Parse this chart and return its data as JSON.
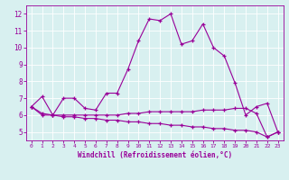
{
  "xlabel": "Windchill (Refroidissement éolien,°C)",
  "line1_x": [
    0,
    1,
    2,
    3,
    4,
    5,
    6,
    7,
    8,
    9,
    10,
    11,
    12,
    13,
    14,
    15,
    16,
    17,
    18,
    19,
    20,
    21,
    22,
    23
  ],
  "line1_y": [
    6.5,
    7.1,
    6.0,
    7.0,
    7.0,
    6.4,
    6.3,
    7.3,
    7.3,
    8.7,
    10.4,
    11.7,
    11.6,
    12.0,
    10.2,
    10.4,
    11.4,
    10.0,
    9.5,
    7.9,
    6.0,
    6.5,
    6.7,
    5.0
  ],
  "line2_x": [
    0,
    1,
    2,
    3,
    4,
    5,
    6,
    7,
    8,
    9,
    10,
    11,
    12,
    13,
    14,
    15,
    16,
    17,
    18,
    19,
    20,
    21,
    22,
    23
  ],
  "line2_y": [
    6.5,
    6.0,
    6.0,
    6.0,
    6.0,
    6.0,
    6.0,
    6.0,
    6.0,
    6.1,
    6.1,
    6.2,
    6.2,
    6.2,
    6.2,
    6.2,
    6.3,
    6.3,
    6.3,
    6.4,
    6.4,
    6.1,
    4.7,
    5.0
  ],
  "line3_x": [
    0,
    1,
    2,
    3,
    4,
    5,
    6,
    7,
    8,
    9,
    10,
    11,
    12,
    13,
    14,
    15,
    16,
    17,
    18,
    19,
    20,
    21,
    22,
    23
  ],
  "line3_y": [
    6.5,
    6.1,
    6.0,
    5.9,
    5.9,
    5.8,
    5.8,
    5.7,
    5.7,
    5.6,
    5.6,
    5.5,
    5.5,
    5.4,
    5.4,
    5.3,
    5.3,
    5.2,
    5.2,
    5.1,
    5.1,
    5.0,
    4.7,
    5.0
  ],
  "line_color": "#990099",
  "bg_color": "#d8f0f0",
  "grid_color": "#ffffff",
  "ylim": [
    4.5,
    12.5
  ],
  "xlim": [
    -0.5,
    23.5
  ],
  "yticks": [
    5,
    6,
    7,
    8,
    9,
    10,
    11,
    12
  ],
  "xticks": [
    0,
    1,
    2,
    3,
    4,
    5,
    6,
    7,
    8,
    9,
    10,
    11,
    12,
    13,
    14,
    15,
    16,
    17,
    18,
    19,
    20,
    21,
    22,
    23
  ]
}
